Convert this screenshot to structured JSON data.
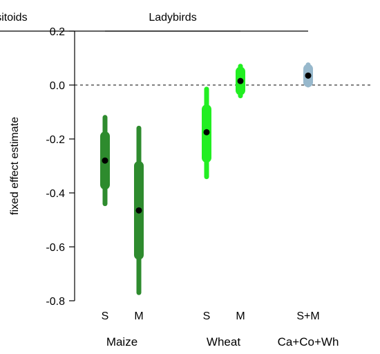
{
  "chart_data": {
    "type": "interval",
    "ylabel": "fixed effect estimate",
    "ylim": [
      -0.8,
      0.2
    ],
    "y_ticks": [
      0.2,
      0.0,
      -0.2,
      -0.4,
      -0.6,
      -0.8
    ],
    "y_tick_labels": [
      "0.2",
      "0.0",
      "-0.2",
      "-0.4",
      "-0.6",
      "-0.8"
    ],
    "reference_line": {
      "value": 0.0,
      "style": "dashed"
    },
    "header_groups": [
      {
        "label": "Ladybirds",
        "span": [
          "maize-s",
          "wheat-m"
        ]
      },
      {
        "label": "Parasitoids",
        "span": [
          "cacowh-sm"
        ]
      }
    ],
    "bottom_groups": [
      {
        "label": "Maize",
        "members": [
          "maize-s",
          "maize-m"
        ]
      },
      {
        "label": "Wheat",
        "members": [
          "wheat-s",
          "wheat-m"
        ]
      },
      {
        "label": "Ca+Co+Wh",
        "members": [
          "cacowh-sm"
        ]
      }
    ],
    "series": [
      {
        "id": "maize-s",
        "label": "S",
        "estimate": -0.28,
        "inner": [
          -0.37,
          -0.19
        ],
        "outer": [
          -0.44,
          -0.12
        ],
        "color": "#2e8b2e"
      },
      {
        "id": "maize-m",
        "label": "M",
        "estimate": -0.465,
        "inner": [
          -0.63,
          -0.3
        ],
        "outer": [
          -0.77,
          -0.16
        ],
        "color": "#2e8b2e"
      },
      {
        "id": "wheat-s",
        "label": "S",
        "estimate": -0.175,
        "inner": [
          -0.27,
          -0.09
        ],
        "outer": [
          -0.34,
          -0.015
        ],
        "color": "#22ee22"
      },
      {
        "id": "wheat-m",
        "label": "M",
        "estimate": 0.015,
        "inner": [
          -0.02,
          0.05
        ],
        "outer": [
          -0.04,
          0.07
        ],
        "color": "#22ee22"
      },
      {
        "id": "cacowh-sm",
        "label": "S+M",
        "estimate": 0.035,
        "inner": [
          0.01,
          0.06
        ],
        "outer": [
          0.0,
          0.075
        ],
        "color": "#97b8cc"
      }
    ]
  }
}
